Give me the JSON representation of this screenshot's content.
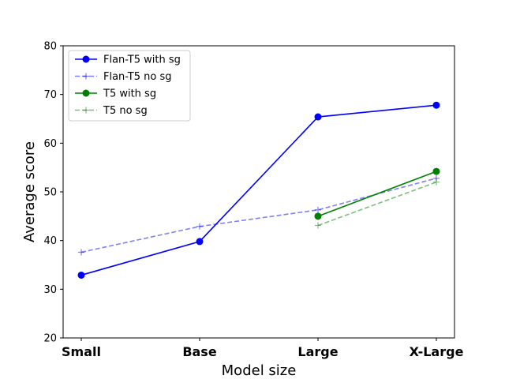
{
  "chart_data": {
    "type": "line",
    "categories": [
      "Small",
      "Base",
      "Large",
      "X-Large"
    ],
    "xlabel": "Model size",
    "ylabel": "Average score",
    "ylim": [
      20,
      80
    ],
    "yticks": [
      20,
      30,
      40,
      50,
      60,
      70,
      80
    ],
    "grid": false,
    "legend_position": "top-left",
    "series": [
      {
        "name": "Flan-T5 with sg",
        "values": [
          32.9,
          39.8,
          65.4,
          67.8
        ],
        "color": "#0000ff",
        "opacity": 1,
        "dashed": false,
        "marker": "circle"
      },
      {
        "name": "Flan-T5 no sg",
        "values": [
          37.6,
          42.9,
          46.3,
          52.8
        ],
        "color": "#0000ff",
        "opacity": 0.5,
        "dashed": true,
        "marker": "plus"
      },
      {
        "name": "T5 with sg",
        "values": [
          null,
          null,
          45.0,
          54.2
        ],
        "color": "#008000",
        "opacity": 1,
        "dashed": false,
        "marker": "circle"
      },
      {
        "name": "T5 no sg",
        "values": [
          null,
          null,
          43.1,
          52.0
        ],
        "color": "#008000",
        "opacity": 0.5,
        "dashed": true,
        "marker": "plus"
      }
    ]
  }
}
